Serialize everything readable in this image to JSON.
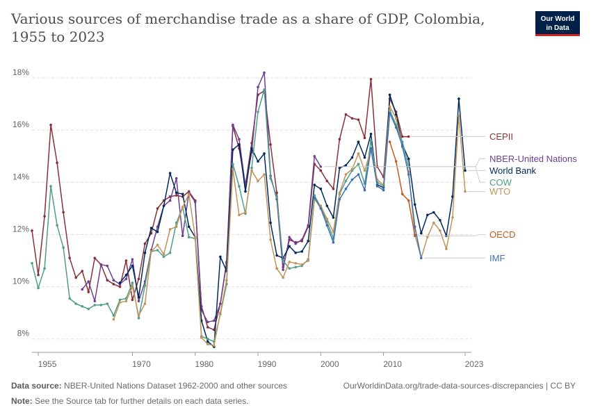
{
  "title": "Various sources of merchandise trade as a share of GDP, Colombia, 1955 to 2023",
  "logo": {
    "line1": "Our World",
    "line2": "in Data"
  },
  "footer": {
    "source_label": "Data source:",
    "source_text": "NBER-United Nations Dataset 1962-2000 and other sources",
    "note_label": "Note:",
    "note_text": "See the Source tab for further details on each data series.",
    "url": "OurWorldinData.org/trade-data-sources-discrepancies | CC BY"
  },
  "chart_data": {
    "type": "line",
    "x_ticks": [
      1955,
      1970,
      1980,
      1990,
      2000,
      2010,
      2023
    ],
    "y_ticks": [
      8,
      10,
      12,
      14,
      16,
      18
    ],
    "y_tick_labels": [
      "8%",
      "10%",
      "12%",
      "14%",
      "16%",
      "18%"
    ],
    "xlim": [
      1954,
      2024
    ],
    "ylim": [
      7.7,
      18.4
    ],
    "grid": "horizontal dashed",
    "legend": "labels at right end of lines",
    "series": [
      {
        "name": "CEPII",
        "color": "#883039",
        "label_y": 15.75,
        "points": [
          [
            1954,
            12.15
          ],
          [
            1955,
            10.45
          ],
          [
            1956,
            12.7
          ],
          [
            1957,
            16.2
          ],
          [
            1958,
            14.75
          ],
          [
            1959,
            12.85
          ],
          [
            1960,
            11.1
          ],
          [
            1961,
            10.35
          ],
          [
            1962,
            10.6
          ],
          [
            1963,
            9.8
          ],
          [
            1964,
            11.1
          ],
          [
            1965,
            10.85
          ],
          [
            1966,
            10.25
          ],
          [
            1967,
            10.1
          ],
          [
            1968,
            10.0
          ],
          [
            1969,
            11.0
          ],
          [
            1970,
            9.5
          ],
          [
            1971,
            10.3
          ],
          [
            1972,
            11.65
          ],
          [
            1973,
            12.05
          ],
          [
            1974,
            13.0
          ],
          [
            1975,
            13.3
          ],
          [
            1976,
            13.45
          ],
          [
            1977,
            13.5
          ],
          [
            1978,
            13.45
          ],
          [
            1979,
            13.65
          ],
          [
            1980,
            13.3
          ],
          [
            1981,
            9.25
          ],
          [
            1982,
            8.45
          ],
          [
            1983,
            8.35
          ],
          [
            1984,
            9.35
          ],
          [
            1985,
            10.9
          ],
          [
            1986,
            16.15
          ],
          [
            1987,
            15.3
          ],
          [
            1988,
            13.9
          ],
          [
            1989,
            15.5
          ],
          [
            1990,
            17.35
          ],
          [
            1991,
            17.5
          ],
          [
            1992,
            15.45
          ],
          [
            1993,
            13.6
          ],
          [
            1994,
            10.75
          ],
          [
            1995,
            11.8
          ],
          [
            1996,
            11.7
          ],
          [
            1997,
            11.75
          ],
          [
            1998,
            12.3
          ],
          [
            1999,
            14.7
          ],
          [
            2000,
            14.45
          ],
          [
            2001,
            14.05
          ],
          [
            2002,
            13.75
          ],
          [
            2003,
            15.65
          ],
          [
            2004,
            16.6
          ],
          [
            2005,
            16.45
          ],
          [
            2006,
            16.4
          ],
          [
            2007,
            15.7
          ],
          [
            2008,
            17.95
          ],
          [
            2009,
            14.6
          ],
          [
            2010,
            14.2
          ],
          [
            2011,
            17.2
          ],
          [
            2012,
            16.7
          ],
          [
            2013,
            15.75
          ],
          [
            2014,
            15.75
          ]
        ]
      },
      {
        "name": "NBER-United Nations",
        "color": "#6d3e91",
        "label_y": 14.9,
        "points": [
          [
            1962,
            9.9
          ],
          [
            1963,
            10.2
          ],
          [
            1964,
            9.45
          ],
          [
            1965,
            10.85
          ],
          [
            1966,
            10.8
          ],
          [
            1967,
            10.25
          ],
          [
            1968,
            10.1
          ],
          [
            1969,
            10.3
          ],
          [
            1970,
            11.05
          ],
          [
            1971,
            9.45
          ],
          [
            1972,
            10.2
          ],
          [
            1973,
            11.4
          ],
          [
            1974,
            12.3
          ],
          [
            1975,
            13.1
          ],
          [
            1976,
            13.3
          ],
          [
            1977,
            14.15
          ],
          [
            1978,
            11.95
          ],
          [
            1979,
            13.6
          ],
          [
            1980,
            13.25
          ],
          [
            1981,
            9.1
          ],
          [
            1982,
            8.65
          ],
          [
            1983,
            8.7
          ],
          [
            1984,
            9.35
          ],
          [
            1985,
            10.95
          ],
          [
            1986,
            16.2
          ],
          [
            1987,
            15.65
          ],
          [
            1988,
            13.85
          ],
          [
            1989,
            15.15
          ],
          [
            1990,
            17.65
          ],
          [
            1991,
            18.2
          ],
          [
            1992,
            14.25
          ],
          [
            1993,
            13.35
          ],
          [
            1994,
            10.65
          ],
          [
            1995,
            11.9
          ],
          [
            1996,
            11.65
          ],
          [
            1997,
            11.8
          ],
          [
            1998,
            12.35
          ],
          [
            1999,
            15.0
          ],
          [
            2000,
            14.6
          ]
        ]
      },
      {
        "name": "World Bank",
        "color": "#00295b",
        "label_y": 14.45,
        "points": [
          [
            1968,
            10.15
          ],
          [
            1969,
            10.45
          ],
          [
            1970,
            10.8
          ],
          [
            1971,
            9.6
          ],
          [
            1972,
            11.3
          ],
          [
            1973,
            12.25
          ],
          [
            1974,
            12.1
          ],
          [
            1975,
            13.1
          ],
          [
            1976,
            14.35
          ],
          [
            1977,
            13.6
          ],
          [
            1978,
            13.55
          ],
          [
            1979,
            12.3
          ],
          [
            1980,
            11.9
          ],
          [
            1981,
            8.7
          ],
          [
            1982,
            7.9
          ],
          [
            1983,
            7.7
          ],
          [
            1984,
            11.15
          ],
          [
            1985,
            10.6
          ],
          [
            1986,
            15.25
          ],
          [
            1987,
            15.45
          ],
          [
            1988,
            13.65
          ],
          [
            1989,
            15.3
          ],
          [
            1990,
            14.8
          ],
          [
            1991,
            15.1
          ],
          [
            1992,
            12.45
          ],
          [
            1993,
            11.2
          ],
          [
            1994,
            11.1
          ],
          [
            1995,
            11.55
          ],
          [
            1996,
            11.3
          ],
          [
            1997,
            11.35
          ],
          [
            1998,
            11.75
          ],
          [
            1999,
            13.9
          ],
          [
            2000,
            13.75
          ],
          [
            2001,
            13.1
          ],
          [
            2002,
            12.65
          ],
          [
            2003,
            14.55
          ],
          [
            2004,
            14.65
          ],
          [
            2005,
            14.95
          ],
          [
            2006,
            15.55
          ],
          [
            2007,
            14.95
          ],
          [
            2008,
            15.85
          ],
          [
            2009,
            13.9
          ],
          [
            2010,
            13.8
          ],
          [
            2011,
            17.35
          ],
          [
            2012,
            16.6
          ],
          [
            2013,
            15.45
          ],
          [
            2014,
            14.9
          ],
          [
            2015,
            13.15
          ],
          [
            2016,
            12.05
          ],
          [
            2017,
            12.75
          ],
          [
            2018,
            12.85
          ],
          [
            2019,
            12.55
          ],
          [
            2020,
            11.95
          ],
          [
            2021,
            13.45
          ],
          [
            2022,
            17.2
          ],
          [
            2023,
            14.45
          ]
        ]
      },
      {
        "name": "COW",
        "color": "#4e9e8a",
        "label_y": 14.0,
        "points": [
          [
            1954,
            10.9
          ],
          [
            1955,
            9.95
          ],
          [
            1956,
            10.7
          ],
          [
            1957,
            13.85
          ],
          [
            1958,
            12.35
          ],
          [
            1959,
            11.5
          ],
          [
            1960,
            9.55
          ],
          [
            1961,
            9.35
          ],
          [
            1962,
            9.25
          ],
          [
            1963,
            9.15
          ],
          [
            1964,
            9.3
          ],
          [
            1965,
            9.3
          ],
          [
            1966,
            9.35
          ],
          [
            1967,
            8.9
          ],
          [
            1968,
            9.5
          ],
          [
            1969,
            9.55
          ],
          [
            1970,
            10.15
          ],
          [
            1971,
            8.8
          ],
          [
            1972,
            10.05
          ],
          [
            1973,
            11.35
          ],
          [
            1974,
            11.4
          ],
          [
            1975,
            11.15
          ],
          [
            1976,
            11.3
          ],
          [
            1977,
            12.45
          ],
          [
            1978,
            13.05
          ],
          [
            1979,
            11.9
          ],
          [
            1980,
            11.85
          ],
          [
            1981,
            8.1
          ],
          [
            1982,
            8.0
          ],
          [
            1983,
            7.9
          ],
          [
            1984,
            8.95
          ],
          [
            1985,
            10.1
          ],
          [
            1986,
            14.7
          ],
          [
            1987,
            13.85
          ],
          [
            1988,
            12.8
          ],
          [
            1989,
            14.55
          ],
          [
            1990,
            16.7
          ],
          [
            1991,
            17.55
          ],
          [
            1992,
            14.15
          ],
          [
            1993,
            13.45
          ],
          [
            1994,
            11.0
          ],
          [
            1995,
            10.7
          ],
          [
            1996,
            10.75
          ],
          [
            1997,
            10.8
          ],
          [
            1998,
            11.05
          ],
          [
            1999,
            13.5
          ],
          [
            2000,
            13.05
          ],
          [
            2001,
            12.5
          ],
          [
            2002,
            11.85
          ],
          [
            2003,
            13.55
          ],
          [
            2004,
            14.05
          ],
          [
            2005,
            14.45
          ],
          [
            2006,
            14.7
          ],
          [
            2007,
            13.95
          ],
          [
            2008,
            15.6
          ],
          [
            2009,
            14.0
          ],
          [
            2010,
            13.85
          ],
          [
            2011,
            16.75
          ],
          [
            2012,
            16.2
          ],
          [
            2013,
            15.55
          ],
          [
            2014,
            14.6
          ]
        ]
      },
      {
        "name": "WTO",
        "color": "#c09359",
        "label_y": 13.65,
        "points": [
          [
            1967,
            8.75
          ],
          [
            1968,
            9.4
          ],
          [
            1969,
            9.45
          ],
          [
            1970,
            10.0
          ],
          [
            1971,
            8.9
          ],
          [
            1972,
            9.35
          ],
          [
            1973,
            11.35
          ],
          [
            1974,
            11.6
          ],
          [
            1975,
            11.25
          ],
          [
            1976,
            12.2
          ],
          [
            1977,
            12.3
          ],
          [
            1978,
            13.05
          ],
          [
            1979,
            13.55
          ],
          [
            1980,
            11.9
          ],
          [
            1981,
            8.05
          ],
          [
            1982,
            7.8
          ],
          [
            1983,
            7.75
          ],
          [
            1984,
            9.0
          ],
          [
            1985,
            10.25
          ],
          [
            1986,
            14.5
          ],
          [
            1987,
            12.75
          ],
          [
            1988,
            12.85
          ],
          [
            1989,
            14.45
          ],
          [
            1990,
            14.05
          ],
          [
            1991,
            14.3
          ],
          [
            1992,
            11.8
          ],
          [
            1993,
            10.7
          ],
          [
            1994,
            10.35
          ],
          [
            1995,
            10.95
          ],
          [
            1996,
            10.9
          ],
          [
            1997,
            10.85
          ],
          [
            1998,
            11.0
          ],
          [
            1999,
            13.35
          ],
          [
            2000,
            13.1
          ],
          [
            2001,
            12.6
          ],
          [
            2002,
            12.1
          ],
          [
            2003,
            13.6
          ],
          [
            2004,
            14.3
          ],
          [
            2005,
            14.5
          ],
          [
            2006,
            15.1
          ],
          [
            2007,
            14.45
          ],
          [
            2008,
            15.25
          ],
          [
            2009,
            14.1
          ],
          [
            2010,
            13.9
          ],
          [
            2011,
            16.9
          ],
          [
            2012,
            16.45
          ],
          [
            2013,
            15.35
          ],
          [
            2014,
            14.4
          ],
          [
            2015,
            12.0
          ],
          [
            2016,
            11.1
          ],
          [
            2017,
            11.9
          ],
          [
            2018,
            12.45
          ],
          [
            2019,
            12.15
          ],
          [
            2020,
            11.45
          ],
          [
            2021,
            12.65
          ],
          [
            2022,
            16.55
          ],
          [
            2023,
            13.65
          ]
        ]
      },
      {
        "name": "OECD",
        "color": "#c15b1f",
        "label_y": 12.0,
        "points": [
          [
            2011,
            15.55
          ],
          [
            2012,
            14.8
          ],
          [
            2013,
            13.55
          ],
          [
            2014,
            13.3
          ],
          [
            2015,
            11.95
          ]
        ]
      },
      {
        "name": "IMF",
        "color": "#3b70b8",
        "label_y": 11.1,
        "points": [
          [
            1999,
            13.4
          ],
          [
            2000,
            13.0
          ],
          [
            2001,
            12.35
          ],
          [
            2002,
            11.7
          ],
          [
            2003,
            13.35
          ],
          [
            2004,
            13.75
          ],
          [
            2005,
            14.1
          ],
          [
            2006,
            14.3
          ],
          [
            2007,
            13.7
          ],
          [
            2008,
            15.3
          ],
          [
            2009,
            13.85
          ],
          [
            2010,
            13.7
          ],
          [
            2011,
            16.65
          ],
          [
            2012,
            16.1
          ],
          [
            2013,
            15.4
          ],
          [
            2014,
            14.3
          ],
          [
            2015,
            12.3
          ],
          [
            2016,
            11.1
          ]
        ]
      }
    ]
  }
}
